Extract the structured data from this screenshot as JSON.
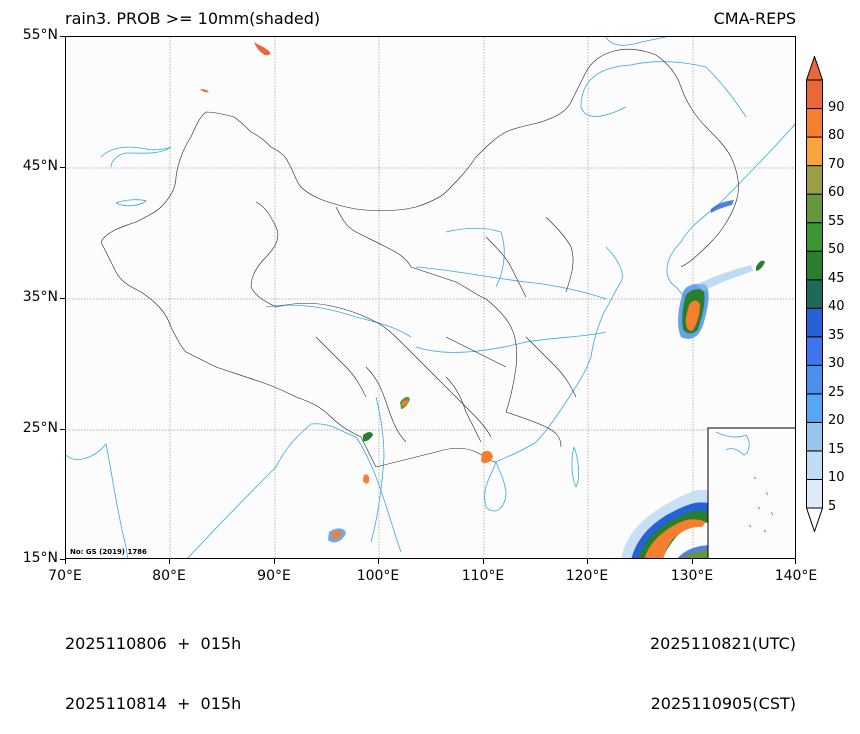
{
  "header": {
    "title_left": "rain3. PROB >= 10mm(shaded)",
    "title_right": "CMA-REPS"
  },
  "map": {
    "note": "No: GS (2019) 1786",
    "lon_range": [
      70,
      140
    ],
    "lat_range": [
      15,
      55
    ],
    "x_ticks": [
      "70°E",
      "80°E",
      "90°E",
      "100°E",
      "110°E",
      "120°E",
      "130°E",
      "140°E"
    ],
    "y_ticks": [
      "55°N",
      "45°N",
      "35°N",
      "25°N",
      "15°N"
    ],
    "gridlines": true,
    "colors": {
      "coastline": "#3aa7e0",
      "border": "#222222",
      "grid": "#999999"
    }
  },
  "colorbar": {
    "levels": [
      "5",
      "10",
      "15",
      "20",
      "25",
      "30",
      "35",
      "40",
      "45",
      "50",
      "55",
      "60",
      "70",
      "80",
      "90"
    ],
    "colors": [
      "#ddeaf8",
      "#c2dbf4",
      "#96c5ee",
      "#52a8f2",
      "#4b90ea",
      "#3f74ef",
      "#2462d6",
      "#1d6a5a",
      "#2a7f2c",
      "#3a9734",
      "#66973c",
      "#9e9f44",
      "#f8a53c",
      "#f67f2f",
      "#e8683a"
    ],
    "extend": "both"
  },
  "footer": {
    "init_utc": "2025110806  +  015h",
    "init_cst": "2025110814  +  015h",
    "valid_utc": "2025110821(UTC)",
    "valid_cst": "2025110905(CST)"
  }
}
